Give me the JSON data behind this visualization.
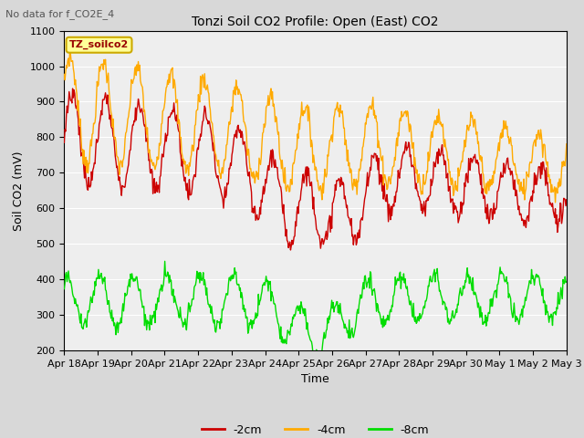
{
  "title": "Tonzi Soil CO2 Profile: Open (East) CO2",
  "subtitle": "No data for f_CO2E_4",
  "xlabel": "Time",
  "ylabel": "Soil CO2 (mV)",
  "ylim": [
    200,
    1100
  ],
  "yticks": [
    200,
    300,
    400,
    500,
    600,
    700,
    800,
    900,
    1000,
    1100
  ],
  "legend_label": "TZ_soilco2",
  "line_labels": [
    "-2cm",
    "-4cm",
    "-8cm"
  ],
  "line_colors": [
    "#cc0000",
    "#ffaa00",
    "#00dd00"
  ],
  "bg_color": "#d8d8d8",
  "plot_bg_color": "#eeeeee",
  "n_points": 720,
  "x_tick_labels": [
    "Apr 18",
    "Apr 19",
    "Apr 20",
    "Apr 21",
    "Apr 22",
    "Apr 23",
    "Apr 24",
    "Apr 25",
    "Apr 26",
    "Apr 27",
    "Apr 28",
    "Apr 29",
    "Apr 30",
    "May 1",
    "May 2",
    "May 3"
  ],
  "figsize": [
    6.4,
    4.8
  ],
  "dpi": 100
}
